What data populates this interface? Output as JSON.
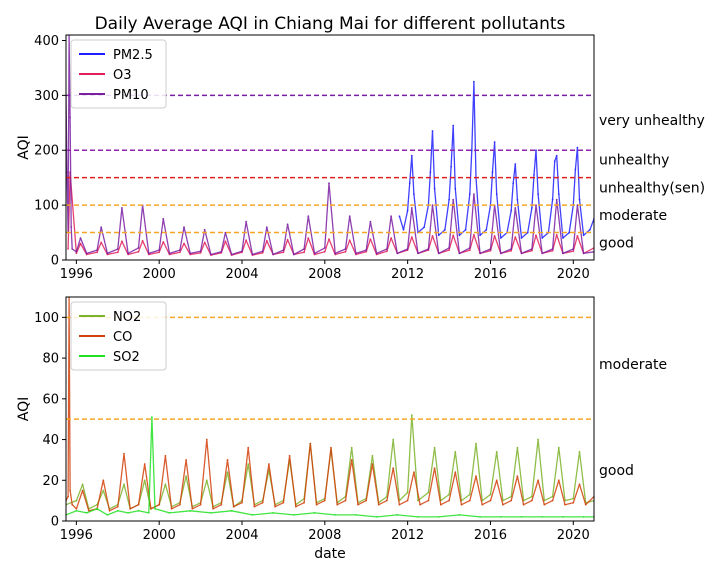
{
  "title": "Daily Average AQI in Chiang Mai for different pollutants",
  "chart_data": [
    {
      "type": "line",
      "ylabel": "AQI",
      "xlim": [
        1995.5,
        2021.0
      ],
      "ylim": [
        0,
        410
      ],
      "xticks": [
        1996,
        2000,
        2004,
        2008,
        2012,
        2016,
        2020
      ],
      "yticks": [
        0,
        100,
        200,
        300,
        400
      ],
      "legend": "top-left",
      "grid": false,
      "thresholds": [
        {
          "y": 50,
          "color": "#f5a623"
        },
        {
          "y": 100,
          "color": "#f5a623"
        },
        {
          "y": 150,
          "color": "#e02020"
        },
        {
          "y": 200,
          "color": "#8e24aa"
        },
        {
          "y": 300,
          "color": "#7b1fa2"
        }
      ],
      "level_labels": [
        {
          "text": "very unhealthy",
          "y": 255
        },
        {
          "text": "unhealthy",
          "y": 183
        },
        {
          "text": "unhealthy(sen)",
          "y": 132
        },
        {
          "text": "moderate",
          "y": 82
        },
        {
          "text": "good",
          "y": 32
        }
      ],
      "series": [
        {
          "name": "PM2.5",
          "color": "#1f1fff",
          "x": [
            2011.6,
            2011.8,
            2012.0,
            2012.1,
            2012.2,
            2012.3,
            2012.5,
            2012.8,
            2013.0,
            2013.1,
            2013.2,
            2013.3,
            2013.5,
            2013.8,
            2014.0,
            2014.1,
            2014.2,
            2014.3,
            2014.5,
            2014.8,
            2015.0,
            2015.1,
            2015.2,
            2015.3,
            2015.5,
            2015.8,
            2016.0,
            2016.1,
            2016.2,
            2016.3,
            2016.5,
            2016.8,
            2017.0,
            2017.1,
            2017.2,
            2017.3,
            2017.5,
            2017.8,
            2018.0,
            2018.1,
            2018.2,
            2018.3,
            2018.5,
            2018.8,
            2019.0,
            2019.1,
            2019.2,
            2019.3,
            2019.5,
            2019.8,
            2020.0,
            2020.1,
            2020.2,
            2020.3,
            2020.5,
            2020.8,
            2021.0
          ],
          "y": [
            80,
            55,
            90,
            140,
            190,
            120,
            50,
            60,
            100,
            160,
            235,
            130,
            45,
            55,
            110,
            170,
            245,
            130,
            45,
            55,
            120,
            200,
            325,
            150,
            45,
            55,
            100,
            160,
            215,
            120,
            40,
            50,
            90,
            140,
            175,
            110,
            40,
            50,
            95,
            155,
            200,
            120,
            40,
            50,
            110,
            180,
            190,
            120,
            40,
            50,
            100,
            165,
            205,
            110,
            45,
            55,
            75
          ]
        },
        {
          "name": "O3",
          "color": "#e0205a",
          "x": [
            1995.6,
            1995.7,
            1996.0,
            1996.2,
            1996.5,
            1997.0,
            1997.2,
            1997.5,
            1998.0,
            1998.2,
            1998.5,
            1999.0,
            1999.2,
            1999.5,
            2000.0,
            2000.2,
            2000.5,
            2001.0,
            2001.2,
            2001.5,
            2002.0,
            2002.2,
            2002.5,
            2003.0,
            2003.2,
            2003.5,
            2004.0,
            2004.2,
            2004.5,
            2005.0,
            2005.2,
            2005.5,
            2006.0,
            2006.2,
            2006.5,
            2007.0,
            2007.2,
            2007.5,
            2008.0,
            2008.2,
            2008.5,
            2009.0,
            2009.2,
            2009.5,
            2010.0,
            2010.2,
            2010.5,
            2011.0,
            2011.2,
            2011.5,
            2012.0,
            2012.2,
            2012.5,
            2013.0,
            2013.2,
            2013.5,
            2014.0,
            2014.2,
            2014.5,
            2015.0,
            2015.2,
            2015.5,
            2016.0,
            2016.2,
            2016.5,
            2017.0,
            2017.2,
            2017.5,
            2018.0,
            2018.2,
            2018.5,
            2019.0,
            2019.2,
            2019.5,
            2020.0,
            2020.2,
            2020.5,
            2021.0
          ],
          "y": [
            20,
            160,
            12,
            30,
            10,
            14,
            32,
            10,
            14,
            34,
            10,
            15,
            35,
            10,
            14,
            33,
            10,
            14,
            30,
            10,
            13,
            32,
            9,
            13,
            34,
            9,
            14,
            36,
            9,
            13,
            35,
            10,
            14,
            37,
            10,
            14,
            40,
            10,
            15,
            38,
            10,
            15,
            36,
            10,
            15,
            38,
            10,
            16,
            40,
            12,
            18,
            42,
            12,
            18,
            44,
            12,
            18,
            45,
            12,
            18,
            46,
            12,
            17,
            44,
            12,
            17,
            42,
            12,
            17,
            45,
            12,
            17,
            46,
            12,
            16,
            44,
            12,
            22
          ]
        },
        {
          "name": "PM10",
          "color": "#7b1fa2",
          "x": [
            1995.5,
            1995.55,
            1995.6,
            1995.65,
            1995.7,
            1995.75,
            1995.8,
            1996.0,
            1996.2,
            1996.5,
            1997.0,
            1997.2,
            1997.5,
            1998.0,
            1998.2,
            1998.5,
            1999.0,
            1999.2,
            1999.5,
            2000.0,
            2000.2,
            2000.5,
            2001.0,
            2001.2,
            2001.5,
            2002.0,
            2002.2,
            2002.5,
            2003.0,
            2003.2,
            2003.5,
            2004.0,
            2004.2,
            2004.5,
            2005.0,
            2005.2,
            2005.5,
            2006.0,
            2006.2,
            2006.5,
            2007.0,
            2007.2,
            2007.5,
            2008.0,
            2008.2,
            2008.5,
            2009.0,
            2009.2,
            2009.5,
            2010.0,
            2010.2,
            2010.5,
            2011.0,
            2011.2,
            2011.5,
            2012.0,
            2012.2,
            2012.5,
            2013.0,
            2013.2,
            2013.5,
            2014.0,
            2014.2,
            2014.5,
            2015.0,
            2015.2,
            2015.5,
            2016.0,
            2016.2,
            2016.5,
            2017.0,
            2017.2,
            2017.5,
            2018.0,
            2018.2,
            2018.5,
            2019.0,
            2019.2,
            2019.5,
            2020.0,
            2020.2,
            2020.5,
            2021.0
          ],
          "y": [
            300,
            160,
            50,
            410,
            260,
            60,
            20,
            15,
            40,
            12,
            18,
            60,
            12,
            20,
            95,
            12,
            22,
            100,
            12,
            18,
            75,
            12,
            18,
            60,
            12,
            16,
            55,
            10,
            15,
            50,
            10,
            16,
            70,
            10,
            16,
            60,
            10,
            18,
            65,
            10,
            20,
            80,
            12,
            22,
            140,
            12,
            20,
            80,
            12,
            18,
            70,
            12,
            20,
            80,
            12,
            20,
            95,
            12,
            20,
            100,
            12,
            22,
            110,
            12,
            22,
            120,
            12,
            20,
            100,
            12,
            20,
            95,
            12,
            20,
            100,
            12,
            20,
            110,
            12,
            20,
            100,
            12,
            15
          ]
        }
      ]
    },
    {
      "type": "line",
      "xlabel": "date",
      "ylabel": "AQI",
      "xlim": [
        1995.5,
        2021.0
      ],
      "ylim": [
        0,
        110
      ],
      "xticks": [
        1996,
        2000,
        2004,
        2008,
        2012,
        2016,
        2020
      ],
      "yticks": [
        0,
        20,
        40,
        60,
        80,
        100
      ],
      "legend": "top-left",
      "grid": false,
      "thresholds": [
        {
          "y": 50,
          "color": "#f5a623"
        },
        {
          "y": 100,
          "color": "#f5a623"
        }
      ],
      "level_labels": [
        {
          "text": "moderate",
          "y": 77
        },
        {
          "text": "good",
          "y": 25
        }
      ],
      "series": [
        {
          "name": "NO2",
          "color": "#7cb32a",
          "x": [
            1995.5,
            1996.0,
            1996.3,
            1996.6,
            1997.0,
            1997.3,
            1997.6,
            1998.0,
            1998.3,
            1998.6,
            1999.0,
            1999.3,
            1999.6,
            2000.0,
            2000.3,
            2000.6,
            2001.0,
            2001.3,
            2001.6,
            2002.0,
            2002.3,
            2002.6,
            2003.0,
            2003.3,
            2003.6,
            2004.0,
            2004.3,
            2004.6,
            2005.0,
            2005.3,
            2005.6,
            2006.0,
            2006.3,
            2006.6,
            2007.0,
            2007.3,
            2007.6,
            2008.0,
            2008.3,
            2008.6,
            2009.0,
            2009.3,
            2009.6,
            2010.0,
            2010.3,
            2010.6,
            2011.0,
            2011.3,
            2011.6,
            2012.0,
            2012.2,
            2012.5,
            2013.0,
            2013.3,
            2013.6,
            2014.0,
            2014.3,
            2014.6,
            2015.0,
            2015.3,
            2015.6,
            2016.0,
            2016.3,
            2016.6,
            2017.0,
            2017.3,
            2017.6,
            2018.0,
            2018.3,
            2018.6,
            2019.0,
            2019.3,
            2019.6,
            2020.0,
            2020.3,
            2020.6,
            2021.0
          ],
          "y": [
            8,
            10,
            18,
            6,
            8,
            15,
            6,
            8,
            18,
            6,
            8,
            20,
            6,
            8,
            18,
            7,
            9,
            22,
            7,
            9,
            20,
            7,
            9,
            24,
            7,
            10,
            28,
            8,
            10,
            25,
            8,
            10,
            30,
            8,
            11,
            38,
            9,
            11,
            35,
            9,
            12,
            36,
            9,
            11,
            32,
            9,
            12,
            40,
            10,
            14,
            52,
            10,
            14,
            36,
            10,
            13,
            34,
            10,
            13,
            38,
            10,
            13,
            34,
            10,
            12,
            36,
            10,
            12,
            40,
            10,
            12,
            36,
            10,
            11,
            34,
            9,
            10
          ]
        },
        {
          "name": "CO",
          "color": "#d2410a",
          "x": [
            1995.5,
            1995.6,
            1995.65,
            1995.7,
            1995.8,
            1996.0,
            1996.3,
            1996.6,
            1997.0,
            1997.3,
            1997.6,
            1998.0,
            1998.3,
            1998.6,
            1999.0,
            1999.3,
            1999.6,
            2000.0,
            2000.3,
            2000.6,
            2001.0,
            2001.3,
            2001.6,
            2002.0,
            2002.3,
            2002.6,
            2003.0,
            2003.3,
            2003.6,
            2004.0,
            2004.3,
            2004.6,
            2005.0,
            2005.3,
            2005.6,
            2006.0,
            2006.3,
            2006.6,
            2007.0,
            2007.3,
            2007.6,
            2008.0,
            2008.3,
            2008.6,
            2009.0,
            2009.3,
            2009.6,
            2010.0,
            2010.3,
            2010.6,
            2011.0,
            2011.3,
            2011.6,
            2012.0,
            2012.3,
            2012.6,
            2013.0,
            2013.3,
            2013.6,
            2014.0,
            2014.3,
            2014.6,
            2015.0,
            2015.3,
            2015.6,
            2016.0,
            2016.3,
            2016.6,
            2017.0,
            2017.3,
            2017.6,
            2018.0,
            2018.3,
            2018.6,
            2019.0,
            2019.3,
            2019.6,
            2020.0,
            2020.3,
            2020.6,
            2021.0
          ],
          "y": [
            10,
            12,
            110,
            15,
            8,
            6,
            15,
            5,
            6,
            20,
            5,
            7,
            33,
            6,
            8,
            28,
            6,
            8,
            32,
            6,
            8,
            30,
            6,
            8,
            40,
            6,
            8,
            30,
            7,
            9,
            36,
            7,
            9,
            28,
            7,
            9,
            32,
            7,
            9,
            38,
            8,
            10,
            36,
            8,
            10,
            30,
            8,
            10,
            28,
            8,
            10,
            26,
            8,
            10,
            24,
            8,
            10,
            26,
            8,
            10,
            24,
            8,
            10,
            22,
            8,
            10,
            20,
            8,
            10,
            22,
            8,
            10,
            20,
            8,
            10,
            20,
            8,
            9,
            18,
            8,
            12
          ]
        },
        {
          "name": "SO2",
          "color": "#20e020",
          "x": [
            1995.5,
            1996.0,
            1996.5,
            1997.0,
            1997.5,
            1998.0,
            1998.5,
            1999.0,
            1999.5,
            1999.65,
            1999.8,
            2000.5,
            2001.5,
            2002.5,
            2003.5,
            2004.5,
            2005.5,
            2006.5,
            2007.5,
            2008.5,
            2009.5,
            2010.5,
            2011.5,
            2012.5,
            2013.5,
            2014.5,
            2015.5,
            2016.5,
            2017.5,
            2018.5,
            2019.5,
            2020.5,
            2021.0
          ],
          "y": [
            3,
            5,
            4,
            6,
            3,
            5,
            4,
            5,
            4,
            51,
            6,
            4,
            5,
            4,
            5,
            3,
            4,
            3,
            4,
            3,
            3,
            2,
            3,
            2,
            2,
            3,
            2,
            2,
            2,
            2,
            2,
            2,
            2
          ]
        }
      ]
    }
  ]
}
